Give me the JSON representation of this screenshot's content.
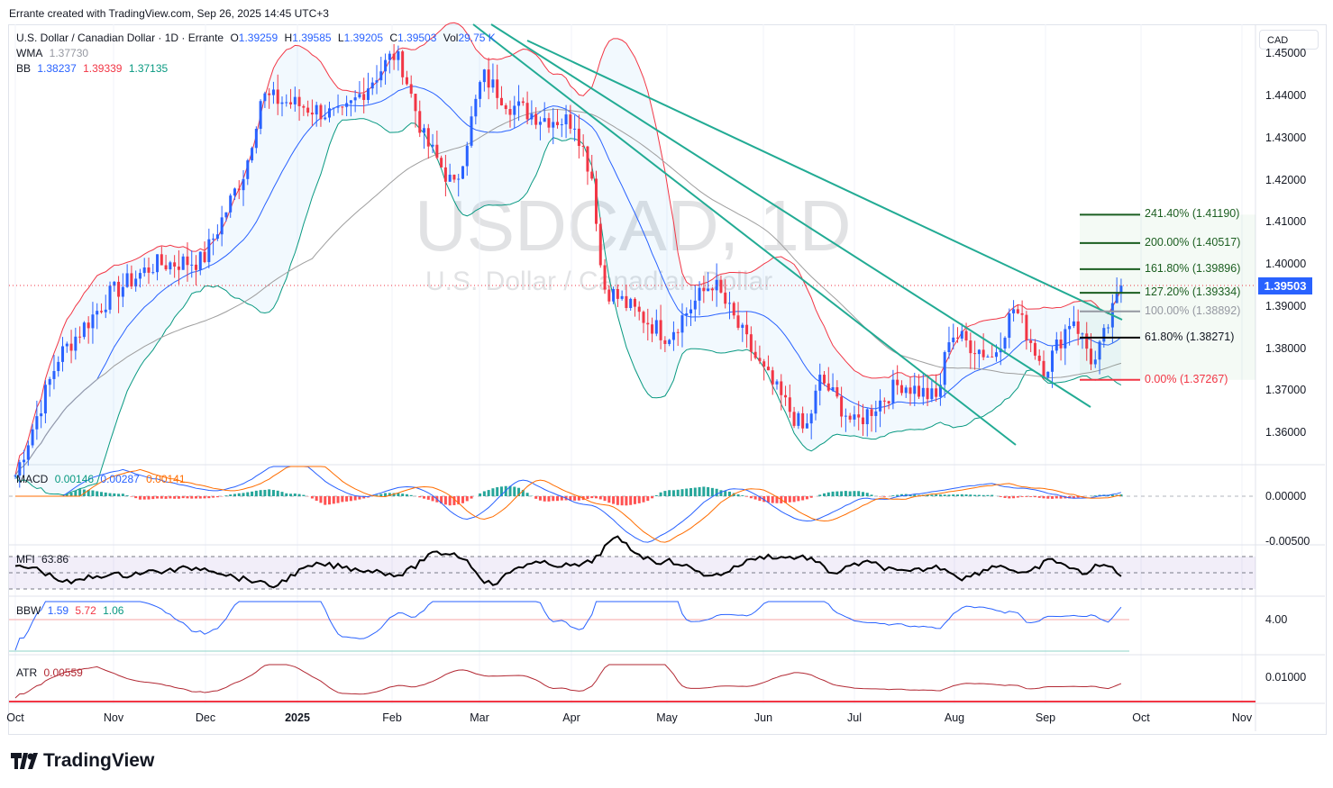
{
  "credit": "Errante created with TradingView.com, Sep 26, 2025 14:45 UTC+3",
  "legend": {
    "symbol": "U.S. Dollar / Canadian Dollar · 1D · Errante",
    "o_label": "O",
    "o": "1.39259",
    "h_label": "H",
    "h": "1.39585",
    "l_label": "L",
    "l": "1.39205",
    "c_label": "C",
    "c": "1.39503",
    "vol_label": "Vol",
    "vol": "29.75 K",
    "wma_label": "WMA",
    "wma": "1.37730",
    "bb_label": "BB",
    "bb_basis": "1.38237",
    "bb_upper": "1.39339",
    "bb_lower": "1.37135"
  },
  "currency": "CAD",
  "watermark": {
    "ticker": "USDCAD, 1D",
    "name": "U.S. Dollar / Canadian Dollar"
  },
  "logo": "TradingView",
  "indicators": {
    "macd": {
      "label": "MACD",
      "hist": "0.00146",
      "macd": "0.00287",
      "signal": "0.00141"
    },
    "mfi": {
      "label": "MFI",
      "value": "63.86"
    },
    "bbw": {
      "label": "BBW",
      "value": "1.59",
      "upper": "5.72",
      "lower": "1.06"
    },
    "atr": {
      "label": "ATR",
      "value": "0.00559"
    }
  },
  "chart_data": {
    "type": "candlestick",
    "title": "USDCAD, 1D",
    "price_axis": [
      "1.45000",
      "1.44000",
      "1.43000",
      "1.42000",
      "1.41000",
      "1.40000",
      "1.39000",
      "1.38000",
      "1.37000",
      "1.36000"
    ],
    "indicator_axis": {
      "macd": [
        "0.00000",
        "-0.00500"
      ],
      "bbw": [
        "4.00"
      ],
      "atr": [
        "0.01000"
      ]
    },
    "last_price": "1.39503",
    "x_ticks": [
      "Oct",
      "Nov",
      "Dec",
      "2025",
      "Feb",
      "Mar",
      "Apr",
      "May",
      "Jun",
      "Jul",
      "Aug",
      "Sep",
      "Oct",
      "Nov"
    ],
    "close_path": [
      [
        0,
        1.35
      ],
      [
        14,
        1.378
      ],
      [
        31,
        1.393
      ],
      [
        45,
        1.4
      ],
      [
        61,
        1.401
      ],
      [
        75,
        1.423
      ],
      [
        80,
        1.44
      ],
      [
        92,
        1.438
      ],
      [
        106,
        1.435
      ],
      [
        123,
        1.45
      ],
      [
        126,
        1.447
      ],
      [
        133,
        1.43
      ],
      [
        143,
        1.418
      ],
      [
        152,
        1.445
      ],
      [
        161,
        1.438
      ],
      [
        171,
        1.435
      ],
      [
        182,
        1.434
      ],
      [
        188,
        1.42
      ],
      [
        191,
        1.395
      ],
      [
        212,
        1.383
      ],
      [
        222,
        1.392
      ],
      [
        227,
        1.396
      ],
      [
        243,
        1.375
      ],
      [
        257,
        1.36
      ],
      [
        262,
        1.373
      ],
      [
        273,
        1.362
      ],
      [
        288,
        1.372
      ],
      [
        300,
        1.368
      ],
      [
        304,
        1.384
      ],
      [
        318,
        1.378
      ],
      [
        325,
        1.39
      ],
      [
        335,
        1.375
      ],
      [
        344,
        1.388
      ],
      [
        351,
        1.376
      ],
      [
        360,
        1.395
      ]
    ],
    "fibonacci": [
      {
        "level": "241.40%",
        "price": "(1.41190)",
        "value": 1.4119,
        "color": "#1b5e20"
      },
      {
        "level": "200.00%",
        "price": "(1.40517)",
        "value": 1.40517,
        "color": "#1b5e20"
      },
      {
        "level": "161.80%",
        "price": "(1.39896)",
        "value": 1.39896,
        "color": "#1b5e20"
      },
      {
        "level": "127.20%",
        "price": "(1.39334)",
        "value": 1.39334,
        "color": "#1b5e20"
      },
      {
        "level": "100.00%",
        "price": "(1.38892)",
        "value": 1.38892,
        "color": "#9598a1"
      },
      {
        "level": "61.80%",
        "price": "(1.38271)",
        "value": 1.38271,
        "color": "#000000"
      },
      {
        "level": "0.00%",
        "price": "(1.37267)",
        "value": 1.37267,
        "color": "#f23645"
      }
    ]
  }
}
